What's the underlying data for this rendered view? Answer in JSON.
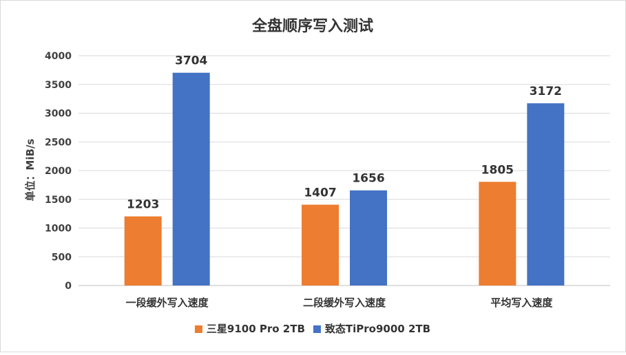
{
  "chart_data": {
    "type": "bar",
    "title": "全盘顺序写入测试",
    "ylabel": "单位：MiB/s",
    "xlabel": "",
    "categories": [
      "一段缓外写入速度",
      "二段缓外写入速度",
      "平均写入速度"
    ],
    "series": [
      {
        "name": "三星9100 Pro 2TB",
        "values": [
          1203,
          1407,
          1805
        ],
        "color": "#ED7D31"
      },
      {
        "name": "致态TiPro9000 2TB",
        "values": [
          3704,
          1656,
          3172
        ],
        "color": "#4472C4"
      }
    ],
    "ylim": [
      0,
      4000
    ],
    "yticks": [
      0,
      500,
      1000,
      1500,
      2000,
      2500,
      3000,
      3500,
      4000
    ],
    "grid": true,
    "legend_position": "bottom"
  }
}
